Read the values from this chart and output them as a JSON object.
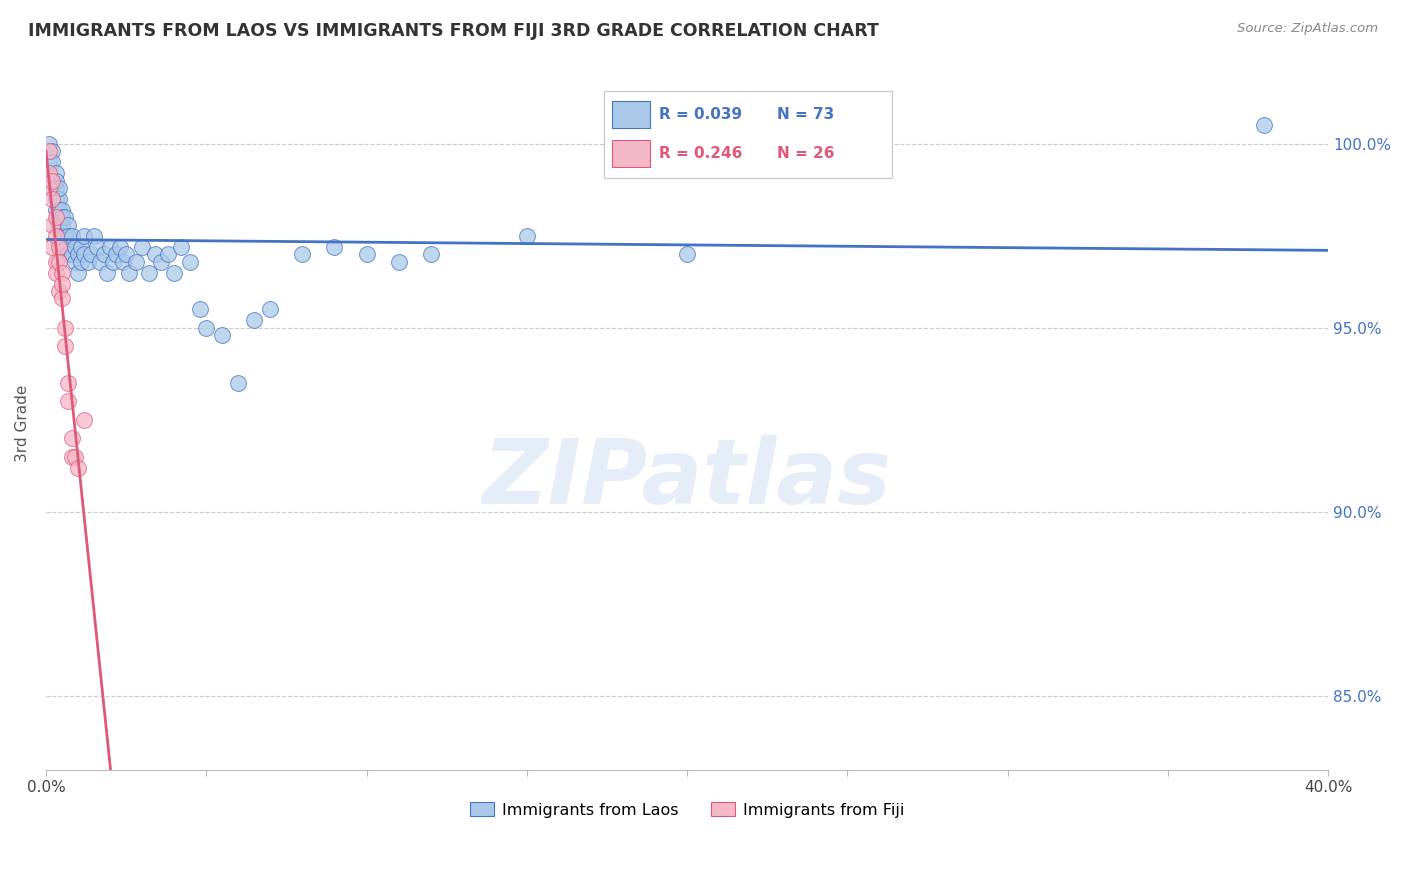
{
  "title": "IMMIGRANTS FROM LAOS VS IMMIGRANTS FROM FIJI 3RD GRADE CORRELATION CHART",
  "source": "Source: ZipAtlas.com",
  "ylabel": "3rd Grade",
  "xlim": [
    0.0,
    0.4
  ],
  "ylim": [
    83.0,
    101.8
  ],
  "legend_blue_r": "0.039",
  "legend_blue_n": "73",
  "legend_pink_r": "0.246",
  "legend_pink_n": "26",
  "blue_color": "#aac9e8",
  "pink_color": "#f5b8c8",
  "blue_line_color": "#4472c4",
  "pink_line_color": "#e05878",
  "watermark": "ZIPatlas",
  "blue_x": [
    0.001,
    0.001,
    0.001,
    0.002,
    0.002,
    0.002,
    0.002,
    0.003,
    0.003,
    0.003,
    0.003,
    0.003,
    0.004,
    0.004,
    0.004,
    0.004,
    0.005,
    0.005,
    0.005,
    0.005,
    0.006,
    0.006,
    0.006,
    0.007,
    0.007,
    0.007,
    0.008,
    0.008,
    0.009,
    0.009,
    0.01,
    0.01,
    0.011,
    0.011,
    0.012,
    0.012,
    0.013,
    0.014,
    0.015,
    0.016,
    0.017,
    0.018,
    0.019,
    0.02,
    0.021,
    0.022,
    0.023,
    0.024,
    0.025,
    0.026,
    0.028,
    0.03,
    0.032,
    0.034,
    0.036,
    0.038,
    0.04,
    0.042,
    0.045,
    0.048,
    0.05,
    0.055,
    0.06,
    0.065,
    0.07,
    0.08,
    0.09,
    0.1,
    0.11,
    0.12,
    0.15,
    0.2,
    0.38
  ],
  "blue_y": [
    100.0,
    99.5,
    99.2,
    99.8,
    99.5,
    99.0,
    98.8,
    99.2,
    98.8,
    98.5,
    98.2,
    99.0,
    98.5,
    98.2,
    97.8,
    98.8,
    98.2,
    97.8,
    97.5,
    98.0,
    98.0,
    97.5,
    97.2,
    97.8,
    97.5,
    97.0,
    97.5,
    97.0,
    97.2,
    96.8,
    97.0,
    96.5,
    97.2,
    96.8,
    97.5,
    97.0,
    96.8,
    97.0,
    97.5,
    97.2,
    96.8,
    97.0,
    96.5,
    97.2,
    96.8,
    97.0,
    97.2,
    96.8,
    97.0,
    96.5,
    96.8,
    97.2,
    96.5,
    97.0,
    96.8,
    97.0,
    96.5,
    97.2,
    96.8,
    95.5,
    95.0,
    94.8,
    93.5,
    95.2,
    95.5,
    97.0,
    97.2,
    97.0,
    96.8,
    97.0,
    97.5,
    97.0,
    100.5
  ],
  "pink_x": [
    0.001,
    0.001,
    0.001,
    0.002,
    0.002,
    0.002,
    0.002,
    0.003,
    0.003,
    0.003,
    0.003,
    0.004,
    0.004,
    0.004,
    0.005,
    0.005,
    0.005,
    0.006,
    0.006,
    0.007,
    0.007,
    0.008,
    0.008,
    0.009,
    0.01,
    0.012
  ],
  "pink_y": [
    99.8,
    99.2,
    98.8,
    99.0,
    98.5,
    97.8,
    97.2,
    98.0,
    97.5,
    96.8,
    96.5,
    97.2,
    96.8,
    96.0,
    96.5,
    95.8,
    96.2,
    95.0,
    94.5,
    93.5,
    93.0,
    92.0,
    91.5,
    91.5,
    91.2,
    92.5
  ]
}
